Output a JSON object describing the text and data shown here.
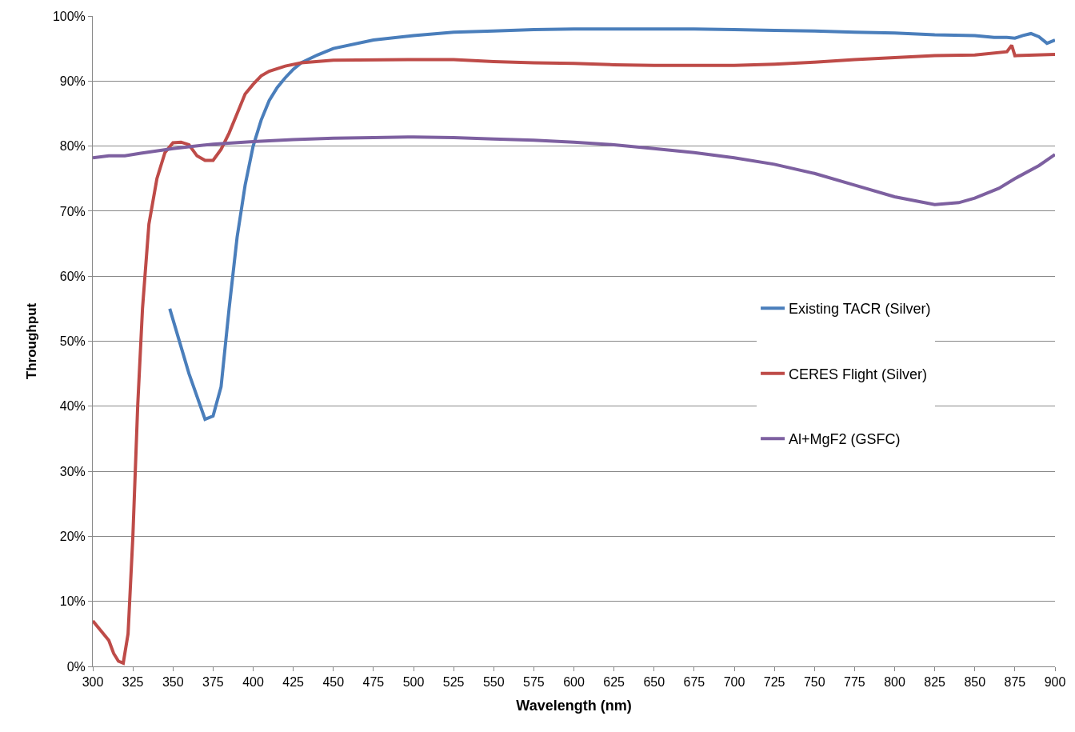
{
  "chart_data": {
    "type": "line",
    "xlabel": "Wavelength (nm)",
    "ylabel": "Throughput",
    "xlim": [
      300,
      900
    ],
    "xticks": [
      300,
      325,
      350,
      375,
      400,
      425,
      450,
      475,
      500,
      525,
      550,
      575,
      600,
      625,
      650,
      675,
      700,
      725,
      750,
      775,
      800,
      825,
      850,
      875,
      900
    ],
    "ylim": [
      0,
      100
    ],
    "yticks": [
      {
        "value": 0,
        "label": "0%"
      },
      {
        "value": 10,
        "label": "10%"
      },
      {
        "value": 20,
        "label": "20%"
      },
      {
        "value": 30,
        "label": "30%"
      },
      {
        "value": 40,
        "label": "40%"
      },
      {
        "value": 50,
        "label": "50%"
      },
      {
        "value": 60,
        "label": "60%"
      },
      {
        "value": 70,
        "label": "70%"
      },
      {
        "value": 80,
        "label": "80%"
      },
      {
        "value": 90,
        "label": "90%"
      },
      {
        "value": 100,
        "label": "100%"
      }
    ],
    "grid": "y",
    "legend": "right",
    "marker": "none",
    "line_style": "solid",
    "series": [
      {
        "name": "Existing TACR (Silver)",
        "color": "#4a7ebb",
        "x": [
          348,
          360,
          370,
          375,
          380,
          385,
          390,
          395,
          400,
          405,
          410,
          415,
          420,
          425,
          430,
          440,
          450,
          475,
          500,
          525,
          550,
          575,
          600,
          625,
          650,
          675,
          700,
          725,
          750,
          775,
          800,
          825,
          850,
          862,
          870,
          875,
          880,
          885,
          890,
          895,
          900
        ],
        "values": [
          55,
          45,
          38,
          38.5,
          43,
          55,
          66,
          74,
          80,
          84,
          87,
          89,
          90.5,
          91.8,
          92.8,
          94,
          95,
          96.3,
          97,
          97.5,
          97.7,
          97.9,
          98,
          98,
          98,
          98,
          97.9,
          97.8,
          97.7,
          97.5,
          97.4,
          97.1,
          97,
          96.7,
          96.7,
          96.6,
          97,
          97.3,
          96.8,
          95.8,
          96.3
        ]
      },
      {
        "name": "CERES Flight (Silver)",
        "color": "#be4b48",
        "x": [
          300,
          305,
          310,
          313,
          316,
          319,
          322,
          325,
          328,
          331,
          335,
          340,
          345,
          350,
          355,
          360,
          365,
          370,
          375,
          380,
          385,
          390,
          395,
          400,
          405,
          410,
          420,
          430,
          450,
          500,
          525,
          550,
          575,
          600,
          625,
          650,
          700,
          725,
          750,
          775,
          800,
          825,
          850,
          870,
          873,
          875,
          900
        ],
        "values": [
          7,
          5.5,
          4,
          2,
          0.8,
          0.5,
          5,
          20,
          40,
          55,
          68,
          75,
          79,
          80.5,
          80.6,
          80.2,
          78.5,
          77.8,
          77.8,
          79.5,
          82,
          85,
          88,
          89.5,
          90.8,
          91.5,
          92.3,
          92.8,
          93.2,
          93.3,
          93.3,
          93,
          92.8,
          92.7,
          92.5,
          92.4,
          92.4,
          92.6,
          92.9,
          93.3,
          93.6,
          93.9,
          94,
          94.5,
          95.5,
          93.9,
          94.1
        ]
      },
      {
        "name": "Al+MgF2 (GSFC)",
        "color": "#7d60a0",
        "x": [
          300,
          310,
          320,
          330,
          350,
          375,
          400,
          425,
          450,
          475,
          500,
          525,
          550,
          575,
          600,
          625,
          650,
          675,
          700,
          725,
          750,
          775,
          800,
          825,
          840,
          850,
          865,
          875,
          890,
          900
        ],
        "values": [
          78.2,
          78.5,
          78.5,
          78.9,
          79.6,
          80.3,
          80.7,
          81,
          81.2,
          81.3,
          81.4,
          81.3,
          81.1,
          80.9,
          80.6,
          80.2,
          79.6,
          79,
          78.2,
          77.2,
          75.8,
          74,
          72.2,
          71,
          71.3,
          72,
          73.5,
          75,
          77,
          78.7
        ]
      }
    ]
  }
}
